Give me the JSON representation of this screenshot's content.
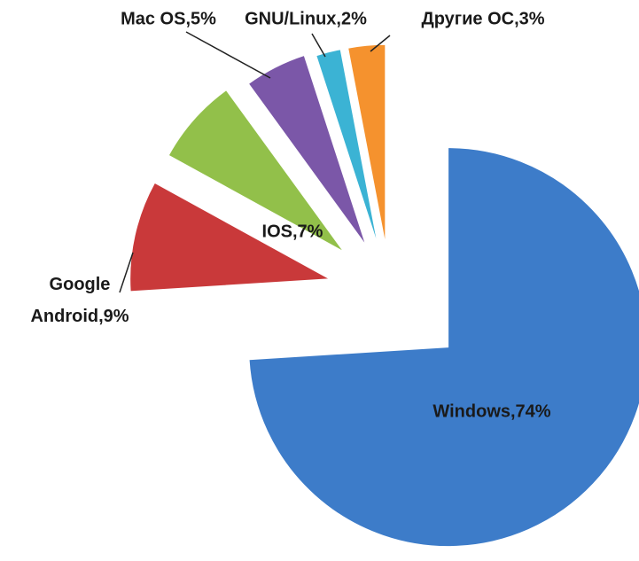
{
  "chart_data": {
    "type": "pie",
    "values": [
      74,
      9,
      7,
      5,
      2,
      3
    ],
    "value_labels": [
      "Windows,74%",
      "Google Android,9%",
      "IOS,7%",
      "Mac OS,5%",
      "GNU/Linux,2%",
      "Другие ОС,3%"
    ],
    "colors": [
      "#3d7cc9",
      "#c9393a",
      "#92c04a",
      "#7b57a8",
      "#3bb3d4",
      "#f5922e"
    ]
  }
}
